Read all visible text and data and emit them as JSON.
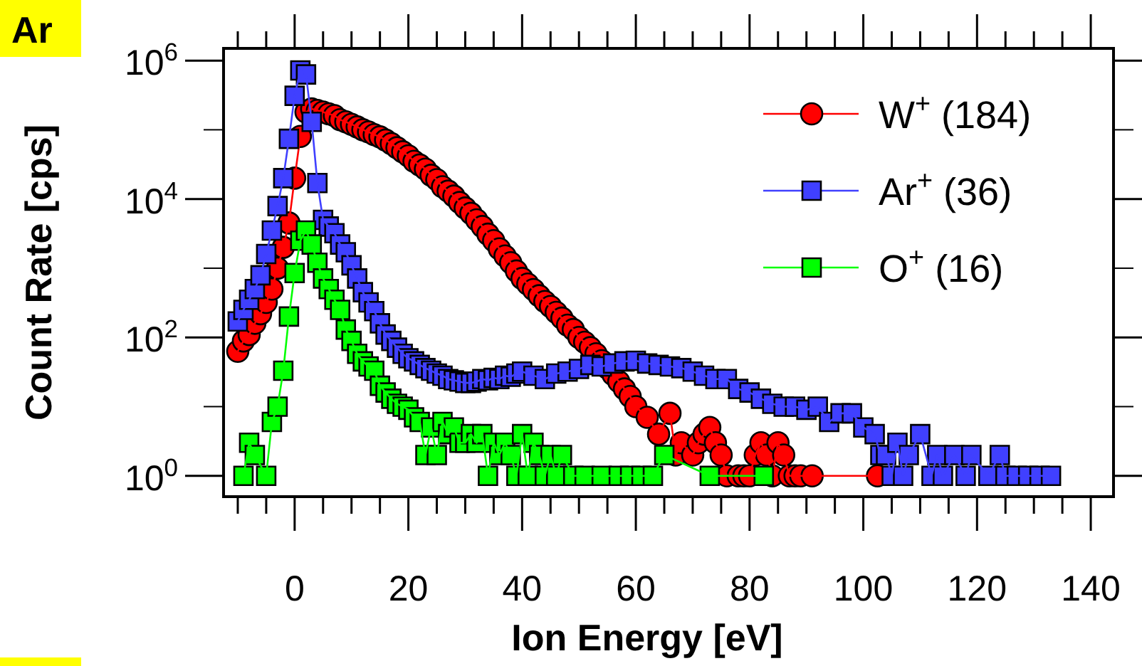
{
  "chart_data": {
    "type": "line",
    "xlabel": "Ion Energy [eV]",
    "ylabel": "Count Rate [cps]",
    "annotations": [
      "Ar"
    ],
    "log": "y",
    "grid": false,
    "legend": "top right",
    "line_style": "solid",
    "xlim": [
      -12.5,
      144
    ],
    "ylim": [
      0.5,
      1500000
    ],
    "xticks": [
      {
        "value": -10,
        "label": null
      },
      {
        "value": -5,
        "label": null
      },
      0,
      {
        "value": 5,
        "label": null
      },
      {
        "value": 10,
        "label": null
      },
      {
        "value": 15,
        "label": null
      },
      20,
      {
        "value": 25,
        "label": null
      },
      {
        "value": 30,
        "label": null
      },
      {
        "value": 35,
        "label": null
      },
      40,
      {
        "value": 45,
        "label": null
      },
      {
        "value": 50,
        "label": null
      },
      {
        "value": 55,
        "label": null
      },
      60,
      {
        "value": 65,
        "label": null
      },
      {
        "value": 70,
        "label": null
      },
      {
        "value": 75,
        "label": null
      },
      80,
      {
        "value": 85,
        "label": null
      },
      {
        "value": 90,
        "label": null
      },
      {
        "value": 95,
        "label": null
      },
      100,
      {
        "value": 105,
        "label": null
      },
      {
        "value": 110,
        "label": null
      },
      {
        "value": 115,
        "label": null
      },
      120,
      {
        "value": 125,
        "label": null
      },
      {
        "value": 130,
        "label": null
      },
      {
        "value": 135,
        "label": null
      },
      140
    ],
    "yticks": [
      {
        "value": 1,
        "label": "10$^{0}$"
      },
      {
        "value": 10,
        "label": null
      },
      {
        "value": 100,
        "label": "10$^{2}$"
      },
      {
        "value": 1000,
        "label": null
      },
      {
        "value": 10000,
        "label": "10$^{4}$"
      },
      {
        "value": 100000,
        "label": null
      },
      {
        "value": 1000000,
        "label": "10$^{6}$"
      }
    ],
    "series": [
      {
        "name": "W$^{+}$ (184)",
        "color": "#ff0000",
        "marker": "circle",
        "x": [
          -10,
          -9,
          -8,
          -7,
          -6,
          -5,
          -4,
          -3,
          -2,
          -1,
          0,
          1,
          2,
          3,
          4,
          5,
          6,
          7,
          8,
          9,
          10,
          11,
          12,
          13,
          14,
          15,
          16,
          17,
          18,
          19,
          20,
          21,
          22,
          23,
          24,
          25,
          26,
          27,
          28,
          29,
          30,
          31,
          32,
          33,
          34,
          35,
          36,
          37,
          38,
          39,
          40,
          41,
          42,
          43,
          44,
          45,
          46,
          47,
          48,
          49,
          50,
          51,
          52,
          53,
          54,
          55,
          56,
          57,
          58,
          59,
          60,
          62,
          64,
          66,
          67,
          68,
          70,
          71,
          72,
          73,
          74,
          75,
          76,
          78,
          79,
          80,
          81,
          82,
          83,
          84,
          85,
          86,
          87,
          88,
          89,
          91,
          102.5
        ],
        "values": [
          63,
          89,
          110,
          160,
          220,
          320,
          500,
          1000,
          2000,
          4500,
          20000,
          80000,
          180000,
          200000,
          190000,
          180000,
          170000,
          160000,
          140000,
          130000,
          120000,
          110000,
          100000,
          93000,
          85000,
          79000,
          71000,
          63000,
          55000,
          48000,
          42000,
          35000,
          31000,
          27000,
          22000,
          19000,
          15000,
          13000,
          11000,
          8900,
          7400,
          6200,
          5000,
          4000,
          3100,
          2500,
          1900,
          1500,
          1200,
          910,
          710,
          590,
          490,
          400,
          330,
          280,
          230,
          190,
          150,
          130,
          100,
          85,
          71,
          58,
          46,
          36,
          29,
          23,
          18,
          14,
          10,
          7,
          4,
          8,
          2,
          3,
          2,
          3,
          4,
          5,
          3,
          2,
          1,
          1,
          1,
          1,
          2,
          3,
          2,
          1,
          3,
          2,
          1,
          1,
          1,
          1,
          1
        ]
      },
      {
        "name": "Ar$^{+}$ (36)",
        "color": "#4040ff",
        "marker": "square",
        "x": [
          -10,
          -9,
          -8,
          -7,
          -6,
          -5,
          -4,
          -3,
          -2,
          -1,
          0,
          1,
          2,
          3,
          4,
          5,
          6,
          7,
          8,
          9,
          10,
          11,
          12,
          13,
          14,
          15,
          16,
          17,
          18,
          19,
          20,
          21,
          22,
          23,
          24,
          25,
          26,
          27,
          28,
          29,
          30,
          31,
          32,
          33,
          34,
          35,
          36,
          37,
          38,
          39,
          40,
          42,
          44,
          46,
          48,
          50,
          52,
          54,
          56,
          58,
          60,
          62,
          64,
          66,
          68,
          70,
          72,
          74,
          76,
          78,
          80,
          82,
          84,
          86,
          88,
          90,
          92,
          94,
          96,
          98,
          100,
          102,
          103,
          104,
          105,
          106,
          107,
          108,
          110,
          112,
          113,
          114,
          116,
          118,
          119,
          122,
          124,
          125,
          127,
          129,
          131,
          133
        ],
        "values": [
          170,
          250,
          350,
          500,
          790,
          1600,
          3500,
          7900,
          20000,
          74000,
          310000,
          720000,
          630000,
          130000,
          17000,
          5000,
          4000,
          3200,
          2200,
          1700,
          1100,
          710,
          450,
          320,
          240,
          160,
          110,
          89,
          71,
          58,
          50,
          45,
          40,
          36,
          33,
          30,
          28,
          25,
          24,
          23,
          22,
          22,
          23,
          25,
          24,
          26,
          25,
          28,
          27,
          30,
          32,
          28,
          25,
          30,
          32,
          35,
          40,
          38,
          42,
          45,
          46,
          42,
          40,
          38,
          36,
          32,
          28,
          25,
          25,
          18,
          16,
          13,
          11,
          10,
          10,
          9,
          10,
          6,
          8,
          8,
          5,
          4,
          2,
          2,
          1,
          3,
          1,
          2,
          4,
          1,
          2,
          1,
          2,
          1,
          2,
          1,
          2,
          1,
          1,
          1,
          1,
          1
        ]
      },
      {
        "name": "O$^{+}$ (16)",
        "color": "#00ff00",
        "marker": "square",
        "x": [
          -9,
          -8,
          -7,
          -5,
          -4,
          -3,
          -2,
          -1,
          0,
          1,
          2,
          3,
          4,
          5,
          6,
          7,
          8,
          9,
          10,
          11,
          12,
          13,
          14,
          15,
          16,
          17,
          18,
          19,
          20,
          21,
          22,
          23,
          24,
          25,
          26,
          27,
          28,
          29,
          30,
          31,
          32,
          33,
          34,
          35,
          36,
          37,
          38,
          39,
          40,
          41,
          42,
          43,
          44,
          45,
          46,
          47,
          49,
          51,
          54,
          57,
          59,
          61,
          63,
          65,
          73,
          82.5
        ],
        "values": [
          1,
          3,
          2,
          1,
          6,
          10,
          33,
          200,
          850,
          2500,
          3500,
          2200,
          1200,
          710,
          500,
          350,
          250,
          130,
          89,
          58,
          45,
          38,
          33,
          20,
          16,
          13,
          11,
          10,
          9,
          7,
          6,
          2,
          5,
          2,
          6,
          4,
          5,
          3,
          3,
          4,
          3,
          4,
          1,
          3,
          2,
          3,
          2,
          1,
          4,
          1,
          3,
          2,
          1,
          2,
          1,
          2,
          1,
          1,
          1,
          1,
          1,
          1,
          1,
          2,
          1,
          1
        ]
      }
    ]
  }
}
